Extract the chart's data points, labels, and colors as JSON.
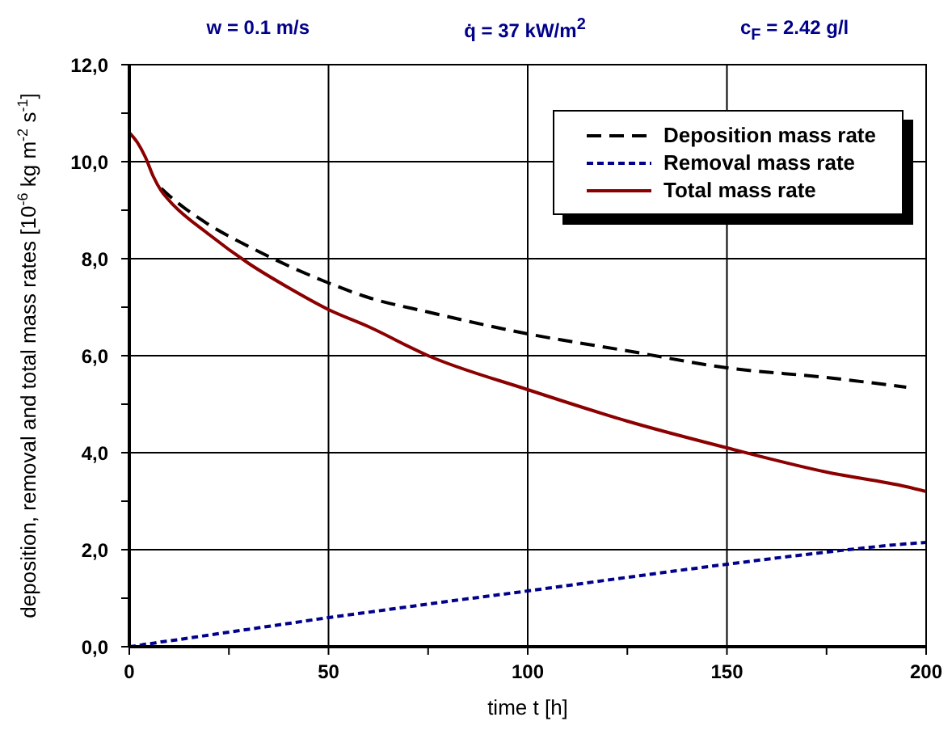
{
  "chart_data": {
    "type": "line",
    "xlabel": "time  t  [h]",
    "ylabel": "deposition, removal and total mass rates  [10$^{-6}$ kg m$^{-2}$ s$^{-1}$]",
    "annotations": [
      "w = 0.1 m/s",
      "q̇ = 37 kW/m$^{2}$",
      "c$_{F}$ = 2.42 g/l"
    ],
    "x": [
      0,
      2,
      4,
      6,
      8,
      10,
      20,
      30,
      40,
      50,
      60,
      75,
      100,
      125,
      150,
      175,
      195,
      200
    ],
    "series": [
      {
        "name": "Deposition mass rate",
        "color": "#000000",
        "line_style": "dashed",
        "values": [
          null,
          null,
          null,
          null,
          9.45,
          9.3,
          8.7,
          8.25,
          7.85,
          7.5,
          7.2,
          6.9,
          6.45,
          6.1,
          5.75,
          5.55,
          5.35,
          null
        ]
      },
      {
        "name": "Removal mass rate",
        "color": "#00008b",
        "line_style": "dotted",
        "values": [
          0,
          0.02,
          0.05,
          0.07,
          0.1,
          0.12,
          0.24,
          0.36,
          0.48,
          0.6,
          0.71,
          0.88,
          1.15,
          1.43,
          1.7,
          1.95,
          2.12,
          2.15
        ]
      },
      {
        "name": "Total mass rate",
        "color": "#8b0000",
        "line_style": "solid",
        "values": [
          10.6,
          10.4,
          10.1,
          9.7,
          9.4,
          9.2,
          8.5,
          7.9,
          7.4,
          6.95,
          6.6,
          6.0,
          5.3,
          4.65,
          4.1,
          3.6,
          3.3,
          3.2
        ]
      }
    ],
    "xlim": [
      0,
      200
    ],
    "xticks": [
      0,
      {
        "value": 25,
        "label": null
      },
      50,
      {
        "value": 75,
        "label": null
      },
      100,
      {
        "value": 125,
        "label": null
      },
      150,
      {
        "value": 175,
        "label": null
      },
      200
    ],
    "ylim": [
      0,
      12
    ],
    "yticks": [
      {
        "value": 0,
        "label": "0,0"
      },
      {
        "value": 1,
        "label": null
      },
      {
        "value": 2,
        "label": "2,0"
      },
      {
        "value": 3,
        "label": null
      },
      {
        "value": 4,
        "label": "4,0"
      },
      {
        "value": 5,
        "label": null
      },
      {
        "value": 6,
        "label": "6,0"
      },
      {
        "value": 7,
        "label": null
      },
      {
        "value": 8,
        "label": "8,0"
      },
      {
        "value": 9,
        "label": null
      },
      {
        "value": 10,
        "label": "10,0"
      },
      {
        "value": 11,
        "label": null
      },
      {
        "value": 12,
        "label": "12,0"
      }
    ],
    "grid": true,
    "legend": "top right",
    "marker": "none"
  }
}
